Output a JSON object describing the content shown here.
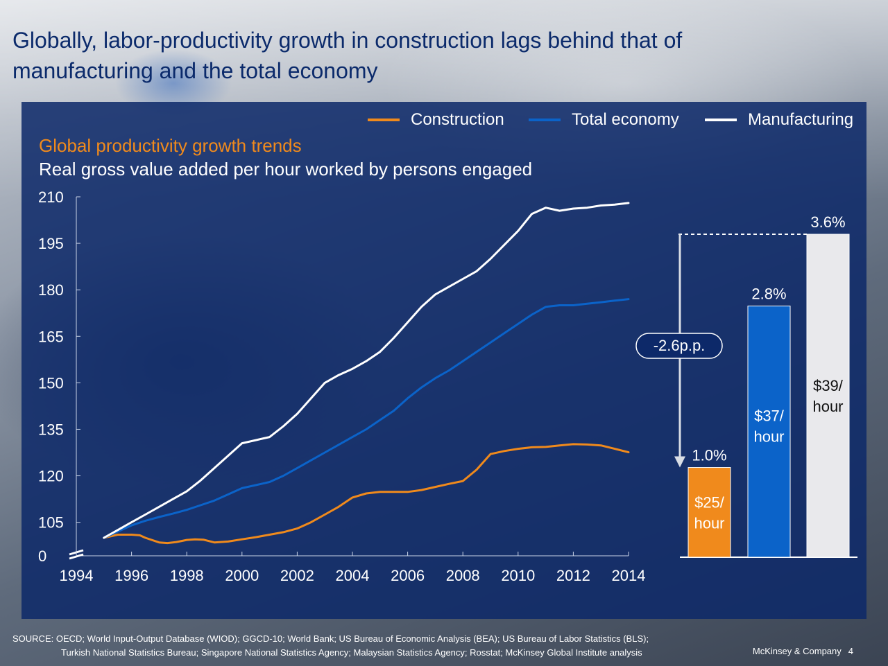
{
  "title": "Globally, labor-productivity growth in construction lags behind that of manufacturing and the total economy",
  "legend": [
    {
      "label": "Construction",
      "color": "#f08a1c"
    },
    {
      "label": "Total economy",
      "color": "#0b63c9"
    },
    {
      "label": "Manufacturing",
      "color": "#ffffff"
    }
  ],
  "chart_title": "Global productivity growth trends",
  "chart_subtitle": "Real gross value added per hour worked by persons engaged",
  "footer": {
    "source_line1": "SOURCE: OECD; World Input-Output Database (WIOD); GGCD-10; World Bank; US Bureau of Economic Analysis (BEA); US Bureau of Labor Statistics (BLS);",
    "source_line2": "Turkish National Statistics Bureau; Singapore National Statistics Agency; Malaysian Statistics Agency; Rosstat; McKinsey Global Institute analysis",
    "company": "McKinsey & Company",
    "page": "4"
  },
  "chart_data": [
    {
      "type": "line",
      "x_ticks": [
        "1994",
        "1996",
        "1998",
        "2000",
        "2002",
        "2004",
        "2006",
        "2008",
        "2010",
        "2012",
        "2014"
      ],
      "y_ticks": [
        "0",
        "105",
        "120",
        "135",
        "150",
        "165",
        "180",
        "195",
        "210"
      ],
      "ylim": [
        100,
        210
      ],
      "axis_break": true,
      "series": [
        {
          "name": "Construction",
          "color": "#f08a1c",
          "x": [
            1995,
            1995.5,
            1996,
            1996.3,
            1996.5,
            1997,
            1997.3,
            1997.6,
            1998,
            1998.3,
            1998.6,
            1999,
            1999.5,
            2000,
            2000.5,
            2001,
            2001.5,
            2002,
            2002.5,
            2003,
            2003.5,
            2004,
            2004.5,
            2005,
            2005.5,
            2006,
            2006.5,
            2007,
            2007.5,
            2008,
            2008.5,
            2009,
            2009.5,
            2010,
            2010.5,
            2011,
            2011.5,
            2012,
            2012.5,
            2013,
            2013.5,
            2014
          ],
          "y": [
            100,
            101,
            101,
            100.8,
            100,
            98.5,
            98.3,
            98.6,
            99.3,
            99.5,
            99.4,
            98.5,
            98.8,
            99.5,
            100.2,
            101,
            101.8,
            103,
            105,
            107.5,
            110,
            113,
            114.3,
            114.8,
            114.8,
            114.8,
            115.4,
            116.4,
            117.4,
            118.3,
            122,
            127,
            128,
            128.7,
            129.2,
            129.3,
            129.8,
            130.2,
            130.1,
            129.8,
            128.7,
            127.6
          ]
        },
        {
          "name": "Total economy",
          "color": "#0b63c9",
          "x": [
            1995,
            1995.5,
            1996,
            1996.5,
            1997,
            1997.5,
            1998,
            1998.5,
            1999,
            1999.5,
            2000,
            2000.5,
            2001,
            2001.5,
            2002,
            2002.5,
            2003,
            2003.5,
            2004,
            2004.5,
            2005,
            2005.5,
            2006,
            2006.5,
            2007,
            2007.5,
            2008,
            2008.5,
            2009,
            2009.5,
            2010,
            2010.5,
            2011,
            2011.5,
            2012,
            2012.5,
            2013,
            2013.5,
            2014
          ],
          "y": [
            100,
            102,
            104,
            105.5,
            106.7,
            107.8,
            109,
            110.5,
            112,
            114,
            116,
            117,
            118,
            120,
            122.5,
            125,
            127.5,
            130,
            132.5,
            135,
            138,
            141,
            145,
            148.5,
            151.5,
            154,
            157,
            160,
            163,
            166,
            169,
            172,
            174.5,
            175,
            175,
            175.5,
            176,
            176.5,
            177
          ]
        },
        {
          "name": "Manufacturing",
          "color": "#ffffff",
          "x": [
            1995,
            1995.5,
            1996,
            1996.5,
            1997,
            1997.5,
            1998,
            1998.5,
            1999,
            1999.5,
            2000,
            2000.5,
            2001,
            2001.5,
            2002,
            2002.5,
            2003,
            2003.5,
            2004,
            2004.5,
            2005,
            2005.5,
            2006,
            2006.5,
            2007,
            2007.5,
            2008,
            2008.5,
            2009,
            2009.5,
            2010,
            2010.5,
            2011,
            2011.5,
            2012,
            2012.5,
            2013,
            2013.5,
            2014
          ],
          "y": [
            100,
            102.5,
            105,
            107.5,
            110,
            112.5,
            115,
            118.5,
            122.5,
            126.5,
            130.5,
            131.5,
            132.5,
            136,
            140,
            145,
            150,
            152.5,
            154.5,
            157,
            160,
            164.5,
            169.5,
            174.5,
            178.5,
            181,
            183.5,
            186,
            190,
            194.5,
            199,
            204.5,
            206.5,
            205.5,
            206.2,
            206.5,
            207.2,
            207.5,
            208
          ]
        }
      ]
    },
    {
      "type": "bar",
      "categories": [
        "Construction",
        "Total economy",
        "Manufacturing"
      ],
      "values": [
        1.0,
        2.8,
        3.6
      ],
      "value_labels": [
        "1.0%",
        "2.8%",
        "3.6%"
      ],
      "inner_labels": [
        [
          "$25/",
          "hour"
        ],
        [
          "$37/",
          "hour"
        ],
        [
          "$39/",
          "hour"
        ]
      ],
      "colors": [
        "#f08a1c",
        "#0b63c9",
        "#e9e9ec"
      ],
      "gap_annotation": "-2.6p.p."
    }
  ]
}
